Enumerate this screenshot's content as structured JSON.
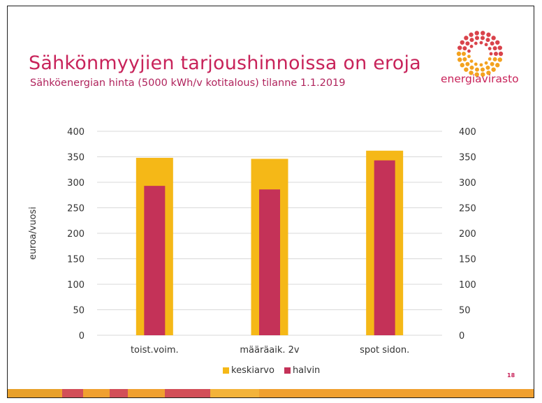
{
  "slide": {
    "title": "Sähkönmyyjien tarjoushinnoissa on eroja",
    "subtitle": "Sähköenergian hinta (5000 kWh/v kotitalous) tilanne 1.1.2019",
    "logo_text": "energiavirasto",
    "page_number": "18"
  },
  "colors": {
    "accent": "#c8235a",
    "keskiarvo": "#f5b817",
    "halvin": "#c43258",
    "footer": "#f0a030"
  },
  "chart_data": {
    "type": "bar",
    "categories": [
      "toist.voim.",
      "määräaik. 2v",
      "spot sidon."
    ],
    "series": [
      {
        "name": "keskiarvo",
        "values": [
          348,
          346,
          362
        ]
      },
      {
        "name": "halvin",
        "values": [
          293,
          286,
          343
        ]
      }
    ],
    "ylabel": "euroa/vuosi",
    "ylim": [
      0,
      400
    ],
    "yticks": [
      0,
      50,
      100,
      150,
      200,
      250,
      300,
      350,
      400
    ],
    "secondary_axis": true,
    "grid": true,
    "legend": "bottom"
  }
}
